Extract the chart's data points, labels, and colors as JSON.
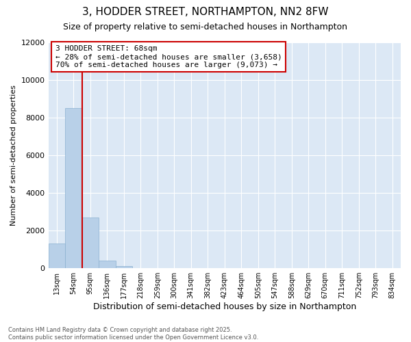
{
  "title": "3, HODDER STREET, NORTHAMPTON, NN2 8FW",
  "subtitle": "Size of property relative to semi-detached houses in Northampton",
  "xlabel": "Distribution of semi-detached houses by size in Northampton",
  "ylabel": "Number of semi-detached properties",
  "categories": [
    "13sqm",
    "54sqm",
    "95sqm",
    "136sqm",
    "177sqm",
    "218sqm",
    "259sqm",
    "300sqm",
    "341sqm",
    "382sqm",
    "423sqm",
    "464sqm",
    "505sqm",
    "547sqm",
    "588sqm",
    "629sqm",
    "670sqm",
    "711sqm",
    "752sqm",
    "793sqm",
    "834sqm"
  ],
  "values": [
    1300,
    8500,
    2700,
    400,
    100,
    0,
    0,
    0,
    0,
    0,
    0,
    0,
    0,
    0,
    0,
    0,
    0,
    0,
    0,
    0,
    0
  ],
  "bar_color": "#b8d0e8",
  "bar_edge_color": "#8ab0d0",
  "vline_color": "#cc0000",
  "vline_x": 1.5,
  "annotation_line1": "3 HODDER STREET: 68sqm",
  "annotation_line2": "← 28% of semi-detached houses are smaller (3,658)",
  "annotation_line3": "70% of semi-detached houses are larger (9,073) →",
  "annotation_box_color": "#cc0000",
  "ylim": [
    0,
    12000
  ],
  "yticks": [
    0,
    2000,
    4000,
    6000,
    8000,
    10000,
    12000
  ],
  "bg_color": "#dce8f5",
  "footer_text": "Contains HM Land Registry data © Crown copyright and database right 2025.\nContains public sector information licensed under the Open Government Licence v3.0.",
  "title_fontsize": 11,
  "subtitle_fontsize": 9,
  "xlabel_fontsize": 9,
  "ylabel_fontsize": 8,
  "annotation_fontsize": 8
}
